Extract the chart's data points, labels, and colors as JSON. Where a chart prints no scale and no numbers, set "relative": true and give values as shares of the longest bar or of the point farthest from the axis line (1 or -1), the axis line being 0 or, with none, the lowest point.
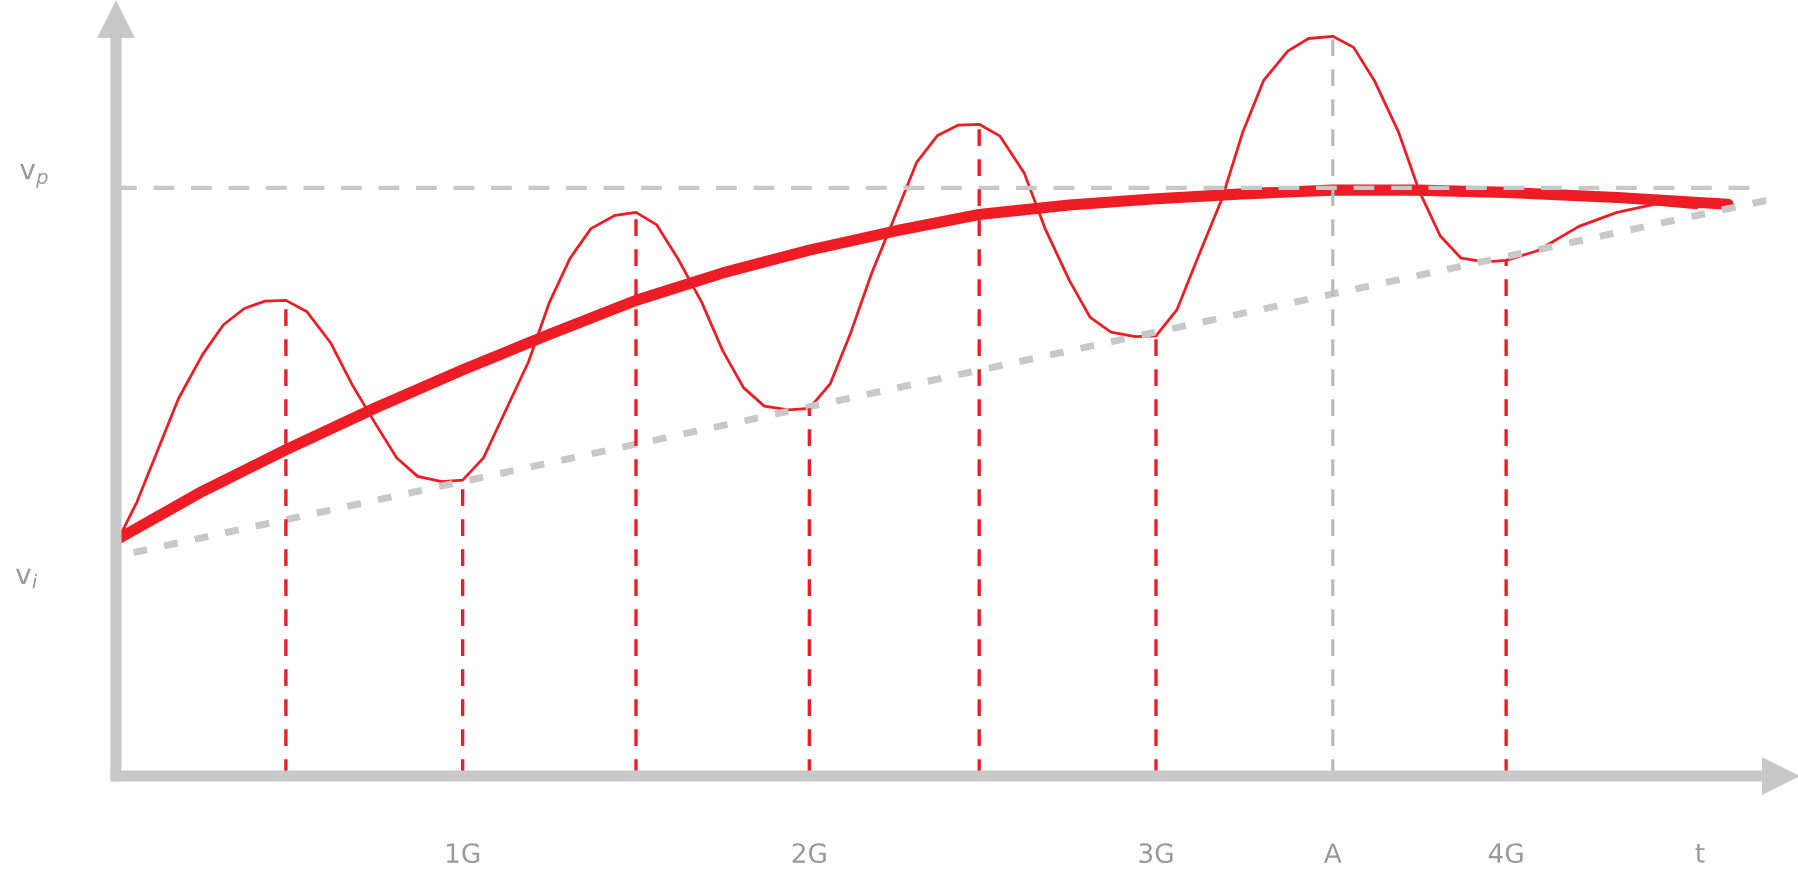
{
  "chart_data": {
    "type": "line",
    "relative": true,
    "xlabel": "t",
    "xlim": [
      0,
      4.8
    ],
    "xticks": [
      {
        "value": 1,
        "label": "1G"
      },
      {
        "value": 2,
        "label": "2G"
      },
      {
        "value": 3,
        "label": "3G"
      },
      {
        "value": 3.51,
        "label": "A"
      },
      {
        "value": 4.01,
        "label": "4G"
      }
    ],
    "grid": false,
    "legend": false,
    "marker": "none",
    "series": [
      {
        "color": "#ee1c25",
        "line_style": "solid",
        "x": [
          0,
          0.06,
          0.12,
          0.18,
          0.25,
          0.31,
          0.37,
          0.43,
          0.49,
          0.55,
          0.62,
          0.68,
          0.75,
          0.81,
          0.87,
          0.94,
          1,
          1.06,
          1.12,
          1.19,
          1.25,
          1.31,
          1.37,
          1.44,
          1.5,
          1.56,
          1.62,
          1.69,
          1.75,
          1.81,
          1.87,
          1.94,
          2,
          2.06,
          2.12,
          2.18,
          2.25,
          2.31,
          2.37,
          2.43,
          2.49,
          2.55,
          2.62,
          2.68,
          2.75,
          2.81,
          2.87,
          2.94,
          3,
          3.06,
          3.12,
          3.19,
          3.25,
          3.31,
          3.38,
          3.44,
          3.51,
          3.57,
          3.63,
          3.7,
          3.76,
          3.82,
          3.88,
          3.95,
          4.01,
          4.1,
          4.22,
          4.33,
          4.44,
          4.56
        ],
        "values": [
          0.314,
          0.37,
          0.44,
          0.51,
          0.57,
          0.61,
          0.632,
          0.642,
          0.643,
          0.628,
          0.585,
          0.53,
          0.475,
          0.43,
          0.405,
          0.398,
          0.4,
          0.43,
          0.49,
          0.56,
          0.64,
          0.7,
          0.74,
          0.758,
          0.762,
          0.745,
          0.7,
          0.64,
          0.575,
          0.525,
          0.5,
          0.495,
          0.497,
          0.53,
          0.6,
          0.68,
          0.76,
          0.83,
          0.866,
          0.88,
          0.881,
          0.865,
          0.815,
          0.74,
          0.67,
          0.62,
          0.6,
          0.594,
          0.595,
          0.63,
          0.7,
          0.78,
          0.87,
          0.94,
          0.98,
          0.997,
          1.0,
          0.985,
          0.94,
          0.87,
          0.79,
          0.73,
          0.7,
          0.695,
          0.697,
          0.71,
          0.743,
          0.762,
          0.773,
          0.768
        ]
      },
      {
        "color": "#ee1c25",
        "line_style": "solid",
        "x": [
          0,
          0.25,
          0.49,
          0.75,
          1,
          1.25,
          1.5,
          1.75,
          2,
          2.25,
          2.49,
          2.75,
          2.99,
          3.25,
          3.51,
          3.75,
          4.01,
          4.33,
          4.65
        ],
        "values": [
          0.319,
          0.385,
          0.441,
          0.498,
          0.549,
          0.597,
          0.643,
          0.68,
          0.711,
          0.737,
          0.759,
          0.772,
          0.78,
          0.787,
          0.792,
          0.792,
          0.789,
          0.782,
          0.773
        ]
      },
      {
        "color": "#c8c8c8",
        "line_style": "dotted",
        "x": [
          0,
          4.76
        ],
        "values": [
          0.297,
          0.778
        ]
      }
    ],
    "ref_lines": [
      {
        "axis": "y",
        "value": 0.795,
        "label": "v$_{p}$",
        "color": "#c8c8c8",
        "line_style": "dashed"
      },
      {
        "axis": "x",
        "value": 0.49,
        "color": "#ee1c25",
        "line_style": "dashed"
      },
      {
        "axis": "x",
        "value": 1,
        "color": "#ee1c25",
        "line_style": "dashed"
      },
      {
        "axis": "x",
        "value": 1.5,
        "color": "#ee1c25",
        "line_style": "dashed"
      },
      {
        "axis": "x",
        "value": 2,
        "color": "#ee1c25",
        "line_style": "dashed"
      },
      {
        "axis": "x",
        "value": 2.49,
        "color": "#ee1c25",
        "line_style": "dashed"
      },
      {
        "axis": "x",
        "value": 3,
        "color": "#ee1c25",
        "line_style": "dashed"
      },
      {
        "axis": "x",
        "value": 3.51,
        "color": "#bbbbbb",
        "line_style": "dashed"
      },
      {
        "axis": "x",
        "value": 4.01,
        "color": "#ee1c25",
        "line_style": "dashed"
      }
    ],
    "annotations": [
      {
        "text": "v$_{i}$",
        "x": 0,
        "y": 0.303
      }
    ]
  }
}
